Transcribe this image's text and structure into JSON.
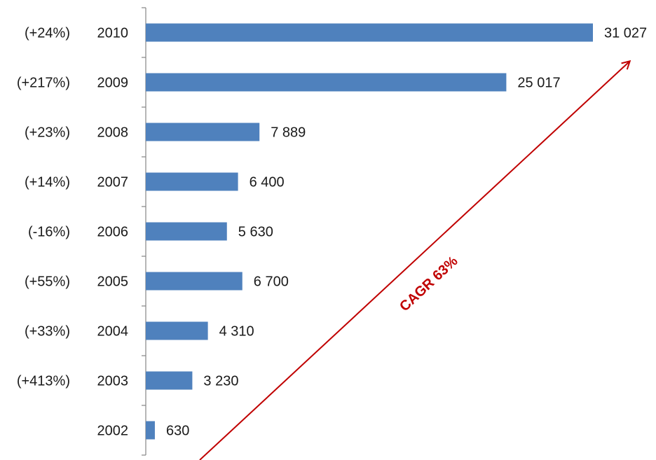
{
  "chart_data": {
    "type": "bar",
    "orientation": "horizontal",
    "categories": [
      "2010",
      "2009",
      "2008",
      "2007",
      "2006",
      "2005",
      "2004",
      "2003",
      "2002"
    ],
    "values": [
      31027,
      25017,
      7889,
      6400,
      5630,
      6700,
      4310,
      3230,
      630
    ],
    "value_labels": [
      "31 027",
      "25 017",
      "7 889",
      "6 400",
      "5 630",
      "6 700",
      "4 310",
      "3 230",
      "630"
    ],
    "growth_labels": [
      "(+24%)",
      "(+217%)",
      "(+23%)",
      "(+14%)",
      "(-16%)",
      "(+55%)",
      "(+33%)",
      "(+413%)",
      ""
    ],
    "xlim": [
      0,
      31027
    ],
    "grid": false,
    "legend": "none",
    "annotation": {
      "text": "CAGR 63%"
    },
    "colors": {
      "bar": "#4F81BD",
      "axis": "#868686",
      "arrow": "#C00000",
      "text": "#1a1a1a"
    }
  }
}
